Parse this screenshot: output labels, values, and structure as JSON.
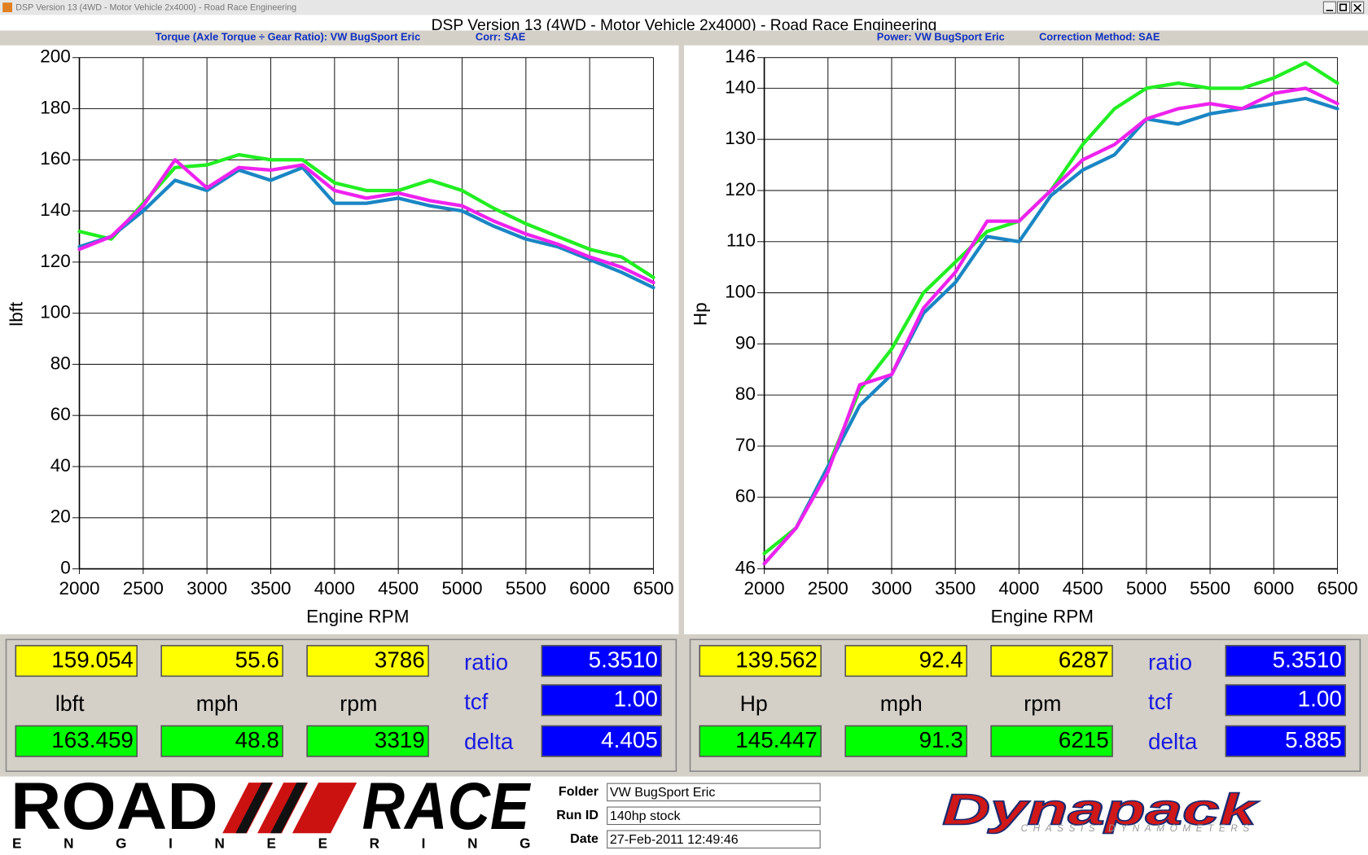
{
  "window": {
    "title": "DSP Version 13 (4WD - Motor Vehicle 2x4000) - Road Race Engineering"
  },
  "header": {
    "title": "DSP Version 13 (4WD - Motor Vehicle 2x4000) - Road Race Engineering"
  },
  "chart_data": [
    {
      "type": "line",
      "subtitle": "Torque (Axle Torque ÷ Gear Ratio): VW BugSport Eric",
      "correction": "Corr: SAE",
      "x_label": "Engine RPM",
      "y_label": "lbft",
      "x": [
        2000,
        2250,
        2500,
        2750,
        3000,
        3250,
        3500,
        3750,
        4000,
        4250,
        4500,
        4750,
        5000,
        5250,
        5500,
        5750,
        6000,
        6250,
        6500
      ],
      "series": [
        {
          "color": "#22ee22",
          "values": [
            132,
            129,
            143,
            157,
            158,
            162,
            160,
            160,
            151,
            148,
            148,
            152,
            148,
            141,
            135,
            130,
            125,
            122,
            114
          ]
        },
        {
          "color": "#1a86c4",
          "values": [
            126,
            130,
            140,
            152,
            148,
            156,
            152,
            157,
            143,
            143,
            145,
            142,
            140,
            134,
            129,
            126,
            121,
            116,
            110
          ]
        },
        {
          "color": "#ee22ee",
          "values": [
            125,
            130,
            142,
            160,
            149,
            157,
            156,
            158,
            148,
            145,
            147,
            144,
            142,
            136,
            131,
            127,
            122,
            118,
            112
          ]
        }
      ],
      "xlim": [
        2000,
        6500
      ],
      "xticks": [
        2000,
        2500,
        3000,
        3500,
        4000,
        4500,
        5000,
        5500,
        6000,
        6500
      ],
      "ylim": [
        0,
        200
      ],
      "yticks": [
        0,
        20,
        40,
        60,
        80,
        100,
        120,
        140,
        160,
        180,
        200
      ],
      "grid": true
    },
    {
      "type": "line",
      "subtitle": "Power: VW BugSport Eric",
      "correction": "Correction Method: SAE",
      "x_label": "Engine RPM",
      "y_label": "Hp",
      "x": [
        2000,
        2250,
        2500,
        2750,
        3000,
        3250,
        3500,
        3750,
        4000,
        4250,
        4500,
        4750,
        5000,
        5250,
        5500,
        5750,
        6000,
        6250,
        6500
      ],
      "series": [
        {
          "color": "#22ee22",
          "values": [
            49,
            54,
            66,
            81,
            89,
            100,
            106,
            112,
            114,
            120,
            129,
            136,
            140,
            141,
            140,
            140,
            142,
            145,
            141
          ]
        },
        {
          "color": "#1a86c4",
          "values": [
            47,
            54,
            66,
            78,
            84,
            96,
            102,
            111,
            110,
            119,
            124,
            127,
            134,
            133,
            135,
            136,
            137,
            138,
            136
          ]
        },
        {
          "color": "#ee22ee",
          "values": [
            47,
            54,
            65,
            82,
            84,
            97,
            104,
            114,
            114,
            120,
            126,
            129,
            134,
            136,
            137,
            136,
            139,
            140,
            137
          ]
        }
      ],
      "xlim": [
        2000,
        6500
      ],
      "xticks": [
        2000,
        2500,
        3000,
        3500,
        4000,
        4500,
        5000,
        5500,
        6000,
        6500
      ],
      "ylim": [
        46,
        146
      ],
      "yticks": [
        46,
        60,
        70,
        80,
        90,
        100,
        110,
        120,
        130,
        140,
        146
      ],
      "grid": true
    }
  ],
  "readouts": [
    {
      "cursor": [
        "159.054",
        "55.6",
        "3786"
      ],
      "units": [
        "lbft",
        "mph",
        "rpm"
      ],
      "peak": [
        "163.459",
        "48.8",
        "3319"
      ],
      "labels": [
        "ratio",
        "tcf",
        "delta"
      ],
      "values": [
        "5.3510",
        "1.00",
        "4.405"
      ]
    },
    {
      "cursor": [
        "139.562",
        "92.4",
        "6287"
      ],
      "units": [
        "Hp",
        "mph",
        "rpm"
      ],
      "peak": [
        "145.447",
        "91.3",
        "6215"
      ],
      "labels": [
        "ratio",
        "tcf",
        "delta"
      ],
      "values": [
        "5.3510",
        "1.00",
        "5.885"
      ]
    }
  ],
  "footer": {
    "logo_word1": "ROAD",
    "logo_word2": "RACE",
    "logo_sub": "ENGINEERING",
    "fields": [
      {
        "label": "Folder",
        "value": "VW BugSport Eric"
      },
      {
        "label": "Run ID",
        "value": "140hp stock"
      },
      {
        "label": "Date",
        "value": "27-Feb-2011 12:49:46"
      }
    ],
    "brand": "Dynapack",
    "brand_sub": "CHASSIS DYNAMOMETERS"
  }
}
